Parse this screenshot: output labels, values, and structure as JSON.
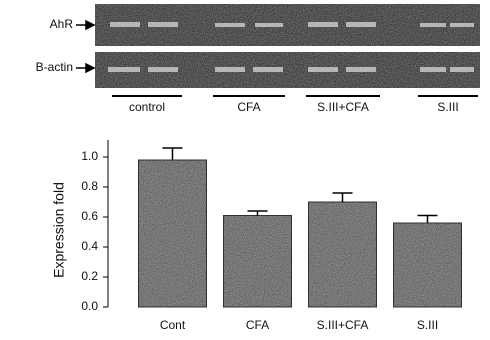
{
  "gel": {
    "rows": [
      "AhR",
      "B-actin"
    ],
    "groups": [
      "control",
      "CFA",
      "S.III+CFA",
      "S.III"
    ]
  },
  "chart_data": {
    "type": "bar",
    "categories": [
      "Cont",
      "CFA",
      "S.III+CFA",
      "S.III"
    ],
    "values": [
      0.98,
      0.61,
      0.7,
      0.56
    ],
    "errors": [
      0.08,
      0.03,
      0.06,
      0.05
    ],
    "color": "#8a8a8a",
    "ylabel": "Expression fold",
    "ylim": [
      0,
      1.1
    ],
    "yticks": [
      {
        "value": 0,
        "label": "0.0"
      },
      0.2,
      0.4,
      0.6,
      0.8,
      {
        "value": 1,
        "label": "1.0"
      }
    ]
  }
}
